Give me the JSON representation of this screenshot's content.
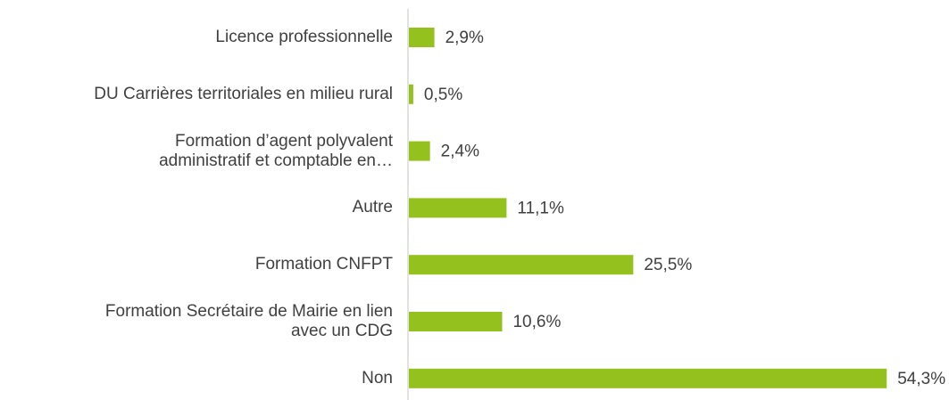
{
  "chart_data": {
    "type": "bar",
    "orientation": "horizontal",
    "categories": [
      "Licence professionnelle",
      "DU Carrières territoriales en milieu rural",
      "Formation d’agent polyvalent\nadministratif et comptable en…",
      "Autre",
      "Formation CNFPT",
      "Formation Secrétaire de Mairie en lien\navec un CDG",
      "Non"
    ],
    "values": [
      2.9,
      0.5,
      2.4,
      11.1,
      25.5,
      10.6,
      54.3
    ],
    "value_labels": [
      "2,9%",
      "0,5%",
      "2,4%",
      "11,1%",
      "25,5%",
      "10,6%",
      "54,3%"
    ],
    "color": "#95c11f",
    "xlim": [
      0,
      56
    ]
  }
}
